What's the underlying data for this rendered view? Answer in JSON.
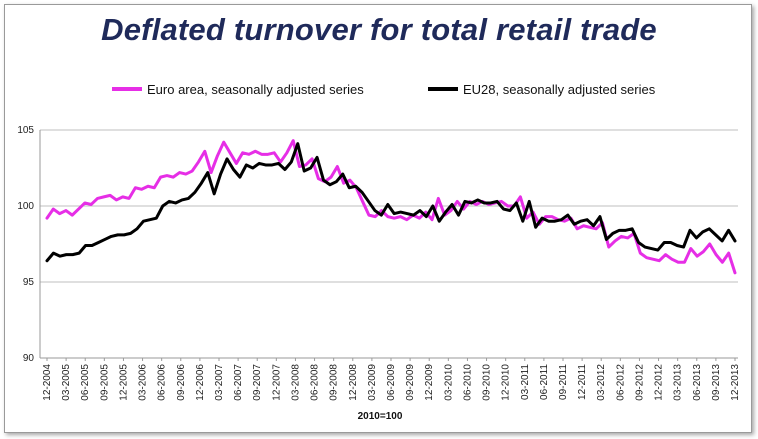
{
  "chart_data": {
    "type": "line",
    "title": "Deflated turnover for total retail trade",
    "note": "2010=100",
    "ylim": [
      90,
      105
    ],
    "yticks": [
      90,
      95,
      100,
      105
    ],
    "grid": true,
    "legend_position": "top",
    "x_tick_labels": [
      "12-2004",
      "03-2005",
      "06-2005",
      "09-2005",
      "12-2005",
      "03-2006",
      "06-2006",
      "09-2006",
      "12-2006",
      "03-2007",
      "06-2007",
      "09-2007",
      "12-2007",
      "03-2008",
      "06-2008",
      "09-2008",
      "12-2008",
      "03-2009",
      "06-2009",
      "09-2009",
      "12-2009",
      "03-2010",
      "06-2010",
      "09-2010",
      "12-2010",
      "03-2011",
      "06-2011",
      "09-2011",
      "12-2011",
      "03-2012",
      "06-2012",
      "09-2012",
      "12-2012",
      "03-2013",
      "06-2013",
      "09-2013",
      "12-2013"
    ],
    "series": [
      {
        "name": "Euro area, seasonally adjusted series",
        "color": "#e62ee6",
        "values": [
          99.2,
          99.8,
          99.5,
          99.7,
          99.4,
          99.8,
          100.2,
          100.1,
          100.5,
          100.6,
          100.7,
          100.4,
          100.6,
          100.5,
          101.2,
          101.1,
          101.3,
          101.2,
          101.9,
          102.0,
          101.9,
          102.2,
          102.1,
          102.3,
          102.9,
          103.6,
          102.2,
          103.3,
          104.2,
          103.5,
          102.8,
          103.5,
          103.4,
          103.6,
          103.4,
          103.4,
          103.5,
          102.9,
          103.5,
          104.3,
          102.6,
          102.7,
          103.1,
          101.8,
          101.6,
          101.9,
          102.6,
          101.5,
          101.7,
          101.2,
          100.3,
          99.4,
          99.3,
          99.7,
          99.3,
          99.2,
          99.3,
          99.1,
          99.4,
          99.2,
          99.6,
          99.1,
          100.5,
          99.4,
          99.7,
          100.3,
          99.8,
          100.3,
          100.1,
          100.3,
          100.1,
          100.2,
          100.3,
          100.0,
          100.0,
          100.6,
          99.2,
          99.6,
          98.8,
          99.3,
          99.3,
          99.1,
          99.0,
          99.2,
          98.5,
          98.7,
          98.6,
          98.5,
          98.9,
          97.3,
          97.7,
          98.0,
          97.9,
          98.2,
          96.9,
          96.6,
          96.5,
          96.4,
          96.8,
          96.5,
          96.3,
          96.3,
          97.2,
          96.7,
          97.0,
          97.5,
          96.8,
          96.3,
          96.9,
          95.6
        ]
      },
      {
        "name": "EU28, seasonally adjusted series",
        "color": "#000000",
        "values": [
          96.4,
          96.9,
          96.7,
          96.8,
          96.8,
          96.9,
          97.4,
          97.4,
          97.6,
          97.8,
          98.0,
          98.1,
          98.1,
          98.2,
          98.5,
          99.0,
          99.1,
          99.2,
          100.0,
          100.3,
          100.2,
          100.4,
          100.5,
          100.9,
          101.5,
          102.2,
          100.8,
          102.1,
          103.1,
          102.4,
          101.9,
          102.7,
          102.5,
          102.8,
          102.7,
          102.7,
          102.8,
          102.4,
          102.9,
          104.1,
          102.3,
          102.5,
          103.2,
          101.7,
          101.4,
          101.6,
          102.1,
          101.2,
          101.3,
          100.9,
          100.3,
          99.7,
          99.4,
          100.1,
          99.5,
          99.6,
          99.5,
          99.4,
          99.7,
          99.3,
          100.0,
          99.0,
          99.6,
          100.1,
          99.4,
          100.3,
          100.2,
          100.4,
          100.2,
          100.2,
          100.3,
          99.8,
          99.7,
          100.2,
          99.0,
          100.3,
          98.6,
          99.2,
          99.0,
          99.0,
          99.1,
          99.4,
          98.8,
          99.0,
          99.1,
          98.7,
          99.3,
          97.8,
          98.2,
          98.4,
          98.4,
          98.5,
          97.6,
          97.3,
          97.2,
          97.1,
          97.6,
          97.6,
          97.4,
          97.3,
          98.4,
          97.9,
          98.3,
          98.5,
          98.1,
          97.7,
          98.4,
          97.7
        ]
      }
    ]
  }
}
